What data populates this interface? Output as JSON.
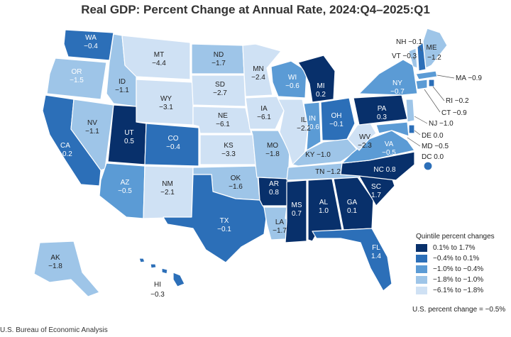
{
  "title": "Real GDP: Percent Change at Annual Rate, 2024:Q4–2025:Q1",
  "legend": {
    "title": "Quintile percent changes",
    "items": [
      {
        "label": "0.1% to 1.7%",
        "color": "#08306b"
      },
      {
        "label": "−0.4% to 0.1%",
        "color": "#2c6fb8"
      },
      {
        "label": "−1.0% to −0.4%",
        "color": "#5b9bd5"
      },
      {
        "label": "−1.8% to −1.0%",
        "color": "#9ec5e8"
      },
      {
        "label": "−6.1% to −1.8%",
        "color": "#cfe1f4"
      }
    ]
  },
  "us_change": "U.S. percent change = −0.5%",
  "source": "U.S. Bureau of Economic Analysis",
  "states": {
    "WA": {
      "abbr": "WA",
      "value": "−0.4"
    },
    "OR": {
      "abbr": "OR",
      "value": "−1.5"
    },
    "CA": {
      "abbr": "CA",
      "value": "−0.2"
    },
    "NV": {
      "abbr": "NV",
      "value": "−1.1"
    },
    "ID": {
      "abbr": "ID",
      "value": "−1.1"
    },
    "MT": {
      "abbr": "MT",
      "value": "−4.4"
    },
    "WY": {
      "abbr": "WY",
      "value": "−3.1"
    },
    "UT": {
      "abbr": "UT",
      "value": "0.5"
    },
    "AZ": {
      "abbr": "AZ",
      "value": "−0.5"
    },
    "CO": {
      "abbr": "CO",
      "value": "−0.4"
    },
    "NM": {
      "abbr": "NM",
      "value": "−2.1"
    },
    "ND": {
      "abbr": "ND",
      "value": "−1.7"
    },
    "SD": {
      "abbr": "SD",
      "value": "−2.7"
    },
    "NE": {
      "abbr": "NE",
      "value": "−6.1"
    },
    "KS": {
      "abbr": "KS",
      "value": "−3.3"
    },
    "OK": {
      "abbr": "OK",
      "value": "−1.6"
    },
    "TX": {
      "abbr": "TX",
      "value": "−0.1"
    },
    "MN": {
      "abbr": "MN",
      "value": "−2.4"
    },
    "IA": {
      "abbr": "IA",
      "value": "−6.1"
    },
    "MO": {
      "abbr": "MO",
      "value": "−1.8"
    },
    "AR": {
      "abbr": "AR",
      "value": "0.8"
    },
    "LA": {
      "abbr": "LA",
      "value": "−1.7"
    },
    "WI": {
      "abbr": "WI",
      "value": "−0.6"
    },
    "IL": {
      "abbr": "IL",
      "value": "−2.2"
    },
    "MI": {
      "abbr": "MI",
      "value": "0.2"
    },
    "IN": {
      "abbr": "IN",
      "value": "−0.6"
    },
    "OH": {
      "abbr": "OH",
      "value": "−0.1"
    },
    "KY": {
      "abbr": "KY",
      "value": "−1.0"
    },
    "TN": {
      "abbr": "TN",
      "value": "−1.2"
    },
    "MS": {
      "abbr": "MS",
      "value": "0.7"
    },
    "AL": {
      "abbr": "AL",
      "value": "1.0"
    },
    "GA": {
      "abbr": "GA",
      "value": "0.1"
    },
    "FL": {
      "abbr": "FL",
      "value": "1.4"
    },
    "SC": {
      "abbr": "SC",
      "value": "1.7"
    },
    "NC": {
      "abbr": "NC",
      "value": "0.8"
    },
    "VA": {
      "abbr": "VA",
      "value": "−0.5"
    },
    "WV": {
      "abbr": "WV",
      "value": "−2.3"
    },
    "PA": {
      "abbr": "PA",
      "value": "0.3"
    },
    "NY": {
      "abbr": "NY",
      "value": "−0.7"
    },
    "ME": {
      "abbr": "ME",
      "value": "−1.2"
    },
    "AK": {
      "abbr": "AK",
      "value": "−1.8"
    },
    "HI": {
      "abbr": "HI",
      "value": "−0.3"
    }
  },
  "callouts": {
    "NH": "NH −0.1",
    "VT": "VT −0.3",
    "MA": "MA −0.9",
    "RI": "RI −0.2",
    "CT": "CT −0.9",
    "NJ": "NJ −1.0",
    "DE": "DE 0.0",
    "MD": "MD −0.5",
    "DC": "DC 0.0"
  }
}
